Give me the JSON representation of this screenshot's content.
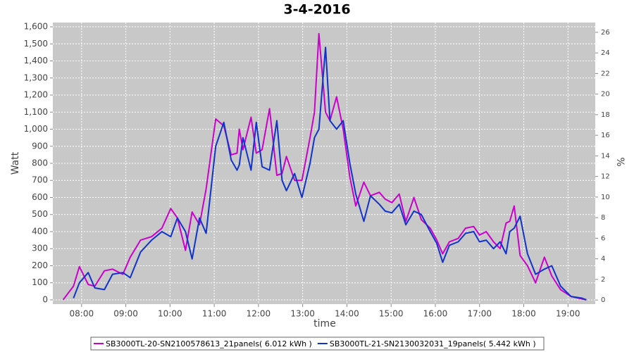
{
  "chart_data": {
    "type": "line",
    "title": "3-4-2016",
    "xlabel": "time",
    "ylabel": "Watt",
    "y2label": "%",
    "x": [
      455,
      469,
      477,
      489,
      498,
      511,
      522,
      536,
      546,
      560,
      575,
      589,
      601,
      610,
      621,
      630,
      640,
      649,
      662,
      673,
      683,
      691,
      694,
      699,
      710,
      717,
      725,
      735,
      745,
      752,
      758,
      769,
      779,
      790,
      796,
      802,
      811,
      817,
      826,
      835,
      844,
      852,
      863,
      872,
      884,
      892,
      901,
      911,
      920,
      931,
      941,
      953,
      962,
      970,
      979,
      991,
      1001,
      1012,
      1020,
      1029,
      1039,
      1048,
      1056,
      1061,
      1067,
      1075,
      1085,
      1096,
      1108,
      1118,
      1130,
      1144,
      1159,
      1165
    ],
    "xlim": [
      441,
      1177
    ],
    "xticks": [
      {
        "value": 480,
        "label": "08:00"
      },
      {
        "value": 540,
        "label": "09:00"
      },
      {
        "value": 600,
        "label": "10:00"
      },
      {
        "value": 660,
        "label": "11:00"
      },
      {
        "value": 720,
        "label": "12:00"
      },
      {
        "value": 780,
        "label": "13:00"
      },
      {
        "value": 840,
        "label": "14:00"
      },
      {
        "value": 900,
        "label": "15:00"
      },
      {
        "value": 960,
        "label": "16:00"
      },
      {
        "value": 1020,
        "label": "17:00"
      },
      {
        "value": 1080,
        "label": "18:00"
      },
      {
        "value": 1140,
        "label": "19:00"
      }
    ],
    "ylim": [
      -25,
      1625
    ],
    "yticks": [
      0,
      100,
      200,
      300,
      400,
      500,
      600,
      700,
      800,
      900,
      {
        "value": 1000,
        "label": "1,000"
      },
      {
        "value": 1100,
        "label": "1,100"
      },
      {
        "value": 1200,
        "label": "1,200"
      },
      {
        "value": 1300,
        "label": "1,300"
      },
      {
        "value": 1400,
        "label": "1,400"
      },
      {
        "value": 1500,
        "label": "1,500"
      },
      {
        "value": 1600,
        "label": "1,600"
      }
    ],
    "y2lim": [
      -0.4,
      26.95
    ],
    "y2ticks": [
      0,
      2,
      4,
      6,
      8,
      10,
      12,
      14,
      16,
      18,
      20,
      22,
      24,
      26
    ],
    "grid": true,
    "series": [
      {
        "name": "SB3000TL-20-SN2100578613_21panels( 6.012 kWh )",
        "color": "#cc00cc",
        "values": [
          0,
          80,
          195,
          90,
          80,
          170,
          180,
          150,
          250,
          350,
          370,
          420,
          535,
          480,
          290,
          515,
          440,
          650,
          1060,
          1020,
          850,
          860,
          1000,
          880,
          1070,
          860,
          880,
          1120,
          730,
          740,
          840,
          700,
          700,
          950,
          1100,
          1560,
          1100,
          1050,
          1190,
          1000,
          720,
          550,
          690,
          610,
          630,
          590,
          570,
          620,
          460,
          600,
          470,
          420,
          350,
          270,
          340,
          360,
          420,
          430,
          380,
          400,
          340,
          300,
          450,
          460,
          550,
          260,
          200,
          100,
          250,
          140,
          60,
          20,
          5,
          0
        ]
      },
      {
        "name": "SB3000TL-21-SN2130032031_19panels( 5.442 kWh )",
        "color": "#1133cc",
        "values": [
          null,
          10,
          100,
          160,
          70,
          60,
          150,
          160,
          130,
          280,
          350,
          400,
          370,
          480,
          400,
          240,
          480,
          390,
          900,
          1040,
          820,
          760,
          790,
          950,
          760,
          1040,
          780,
          760,
          1050,
          700,
          640,
          740,
          600,
          800,
          950,
          1000,
          1480,
          1050,
          1000,
          1050,
          800,
          620,
          460,
          610,
          560,
          520,
          510,
          560,
          440,
          520,
          500,
          400,
          330,
          220,
          320,
          340,
          390,
          400,
          340,
          350,
          300,
          340,
          270,
          400,
          420,
          490,
          270,
          150,
          180,
          200,
          80,
          20,
          10,
          0
        ]
      }
    ]
  }
}
